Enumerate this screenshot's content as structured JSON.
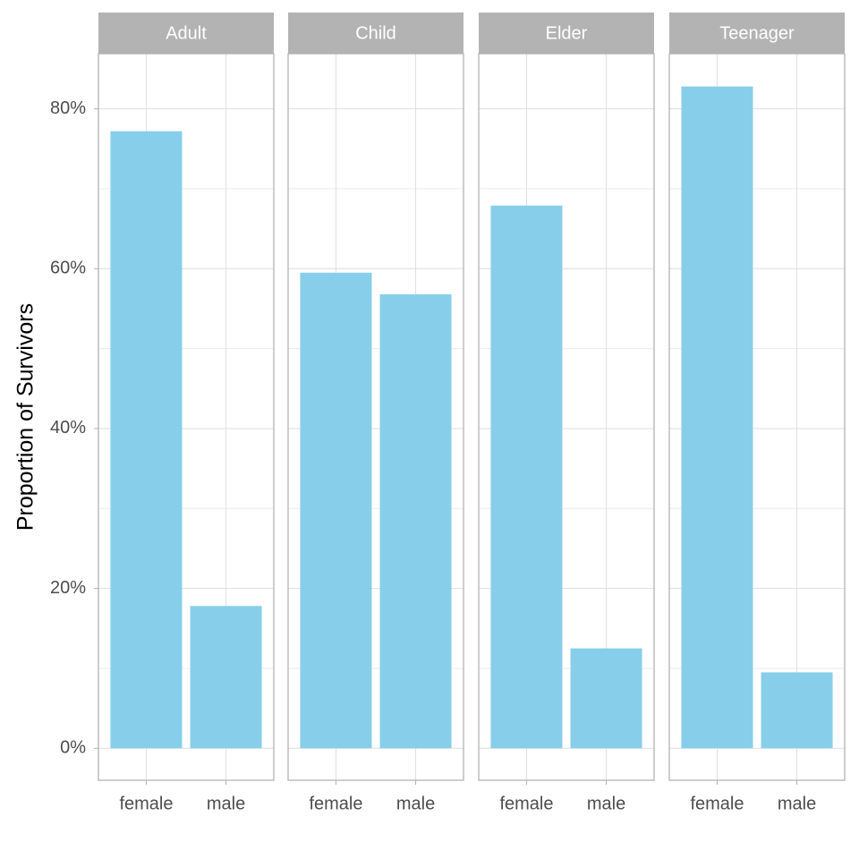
{
  "chart_data": [
    {
      "type": "bar",
      "title": "Adult",
      "ylabel": "Proportion of Survivors",
      "categories": [
        "female",
        "male"
      ],
      "values": [
        77.2,
        17.8
      ],
      "color": "#87ceeb",
      "ylim": [
        -4.0,
        86.9
      ],
      "yticks": [
        {
          "value": 0,
          "label": "0%"
        },
        {
          "value": 20,
          "label": "20%"
        },
        {
          "value": 40,
          "label": "40%"
        },
        {
          "value": 60,
          "label": "60%"
        },
        {
          "value": 80,
          "label": "80%"
        }
      ],
      "minor_yticks": [
        10,
        30,
        50,
        70
      ],
      "grid": true
    },
    {
      "type": "bar",
      "title": "Child",
      "categories": [
        "female",
        "male"
      ],
      "values": [
        59.5,
        56.8
      ],
      "color": "#87ceeb",
      "ylim": [
        -4.0,
        86.9
      ],
      "yticks": [
        0,
        20,
        40,
        60,
        80
      ],
      "minor_yticks": [
        10,
        30,
        50,
        70
      ],
      "grid": true
    },
    {
      "type": "bar",
      "title": "Elder",
      "categories": [
        "female",
        "male"
      ],
      "values": [
        67.9,
        12.5
      ],
      "color": "#87ceeb",
      "ylim": [
        -4.0,
        86.9
      ],
      "yticks": [
        0,
        20,
        40,
        60,
        80
      ],
      "minor_yticks": [
        10,
        30,
        50,
        70
      ],
      "grid": true
    },
    {
      "type": "bar",
      "title": "Teenager",
      "categories": [
        "female",
        "male"
      ],
      "values": [
        82.8,
        9.5
      ],
      "color": "#87ceeb",
      "ylim": [
        -4.0,
        86.9
      ],
      "yticks": [
        0,
        20,
        40,
        60,
        80
      ],
      "minor_yticks": [
        10,
        30,
        50,
        70
      ],
      "grid": true
    }
  ]
}
